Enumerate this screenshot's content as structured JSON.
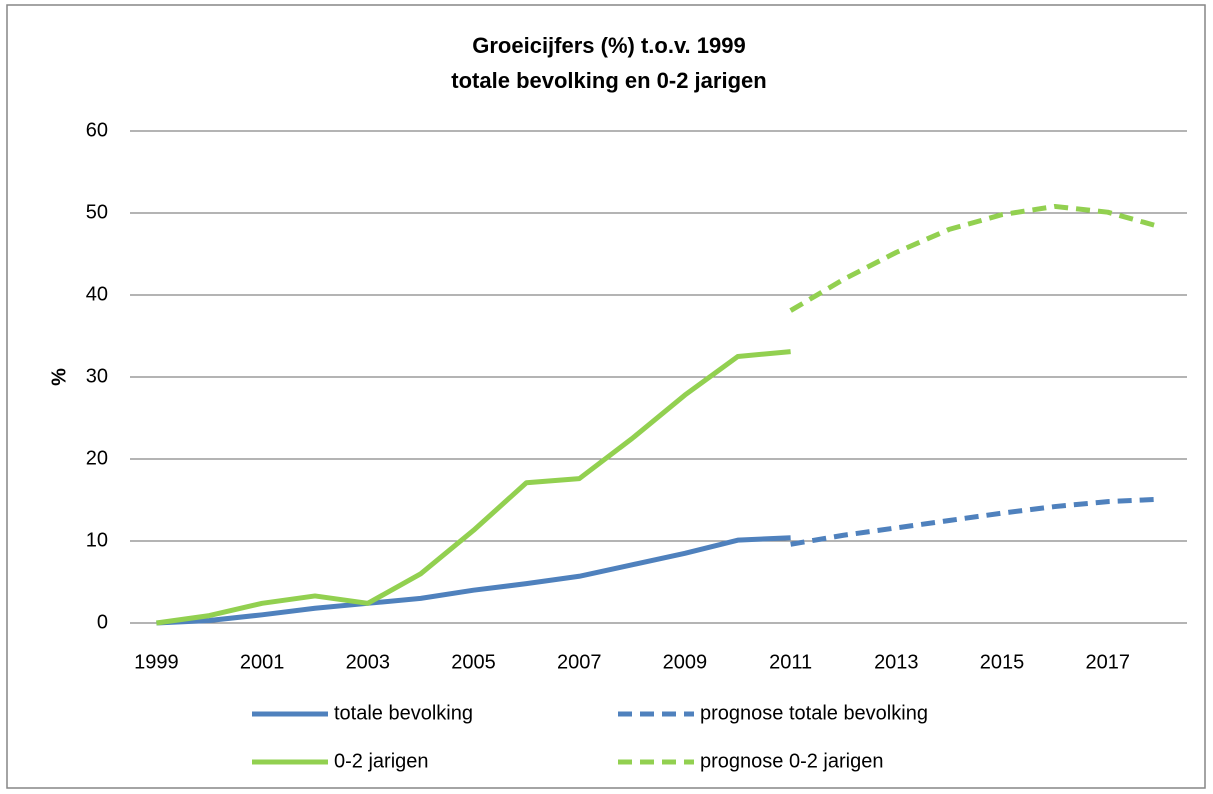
{
  "chart_data": {
    "type": "line",
    "title": [
      "Groeicijfers (%) t.o.v. 1999",
      "totale bevolking en 0-2 jarigen"
    ],
    "y_label": "%",
    "categories": [
      1999,
      null,
      2001,
      null,
      2003,
      null,
      2005,
      null,
      2007,
      null,
      2009,
      null,
      2011,
      null,
      2013,
      null,
      2015,
      null,
      2017,
      null
    ],
    "series": [
      {
        "name": "totale bevolking",
        "color": "#4f81bd",
        "dashed": false,
        "values": [
          0,
          0.3,
          1.0,
          1.8,
          2.4,
          3.0,
          4.0,
          4.8,
          5.7,
          7.1,
          8.5,
          10.1,
          10.4,
          null,
          null,
          null,
          null,
          null,
          null,
          null
        ]
      },
      {
        "name": "prognose totale bevolking",
        "color": "#4f81bd",
        "dashed": true,
        "values": [
          null,
          null,
          null,
          null,
          null,
          null,
          null,
          null,
          null,
          null,
          null,
          null,
          9.6,
          10.7,
          11.6,
          12.5,
          13.4,
          14.2,
          14.8,
          15.1
        ]
      },
      {
        "name": "0-2 jarigen",
        "color": "#92d050",
        "dashed": false,
        "values": [
          0,
          0.9,
          2.4,
          3.3,
          2.4,
          6.0,
          11.3,
          17.1,
          17.6,
          22.5,
          27.8,
          32.5,
          33.1,
          null,
          null,
          null,
          null,
          null,
          null,
          null
        ]
      },
      {
        "name": "prognose 0-2 jarigen",
        "color": "#92d050",
        "dashed": true,
        "values": [
          null,
          null,
          null,
          null,
          null,
          null,
          null,
          null,
          null,
          null,
          null,
          null,
          38.1,
          41.9,
          45.2,
          48.0,
          49.8,
          50.8,
          50.1,
          48.3
        ]
      }
    ],
    "ylim": [
      0,
      60
    ],
    "yticks": [
      0,
      10,
      20,
      30,
      40,
      50,
      60
    ],
    "grid": true,
    "legend": "bottom"
  }
}
